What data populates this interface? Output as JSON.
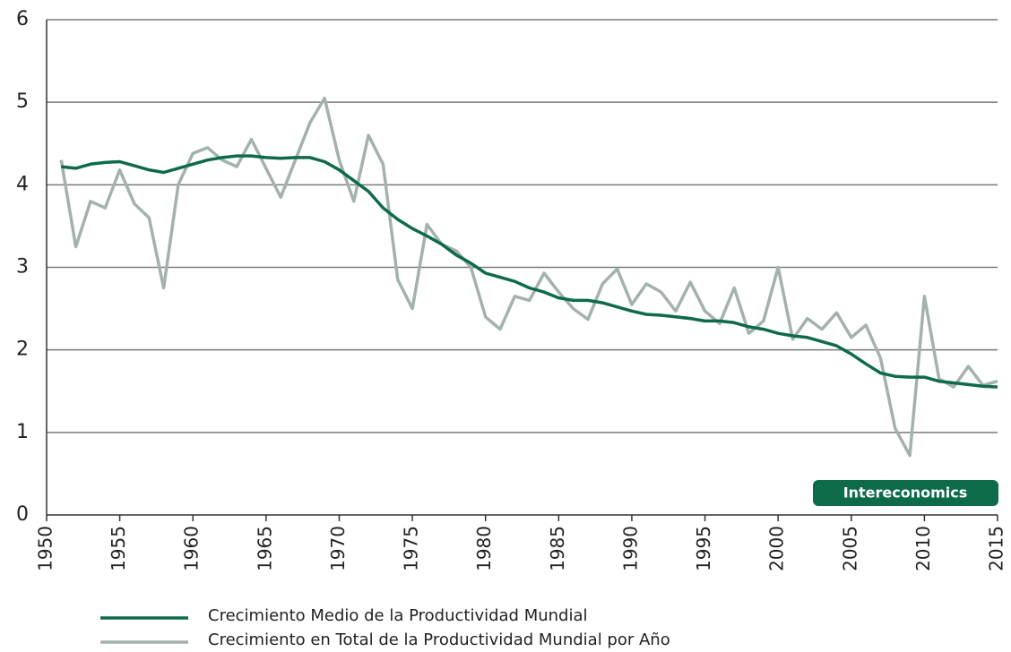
{
  "chart_data": {
    "type": "line",
    "annotation": "Intereconomics",
    "x": [
      1951,
      1952,
      1953,
      1954,
      1955,
      1956,
      1957,
      1958,
      1959,
      1960,
      1961,
      1962,
      1963,
      1964,
      1965,
      1966,
      1967,
      1968,
      1969,
      1970,
      1971,
      1972,
      1973,
      1974,
      1975,
      1976,
      1977,
      1978,
      1979,
      1980,
      1981,
      1982,
      1983,
      1984,
      1985,
      1986,
      1987,
      1988,
      1989,
      1990,
      1991,
      1992,
      1993,
      1994,
      1995,
      1996,
      1997,
      1998,
      1999,
      2000,
      2001,
      2002,
      2003,
      2004,
      2005,
      2006,
      2007,
      2008,
      2009,
      2010,
      2011,
      2012,
      2013,
      2014,
      2015
    ],
    "series": [
      {
        "name": "Crecimiento Medio de la Productividad Mundial",
        "color": "#0e6b4a",
        "values": [
          4.22,
          4.2,
          4.25,
          4.27,
          4.28,
          4.23,
          4.18,
          4.15,
          4.2,
          4.25,
          4.3,
          4.33,
          4.35,
          4.35,
          4.33,
          4.32,
          4.33,
          4.33,
          4.28,
          4.18,
          4.05,
          3.92,
          3.72,
          3.58,
          3.47,
          3.38,
          3.28,
          3.15,
          3.05,
          2.93,
          2.88,
          2.83,
          2.75,
          2.7,
          2.63,
          2.6,
          2.6,
          2.57,
          2.52,
          2.47,
          2.43,
          2.42,
          2.4,
          2.38,
          2.35,
          2.35,
          2.33,
          2.28,
          2.25,
          2.2,
          2.17,
          2.15,
          2.1,
          2.05,
          1.95,
          1.83,
          1.72,
          1.68,
          1.67,
          1.67,
          1.62,
          1.6,
          1.58,
          1.56,
          1.55
        ]
      },
      {
        "name": "Crecimiento en Total de la Productividad Mundial por Año",
        "color": "#a3b3ac",
        "values": [
          4.3,
          3.25,
          3.8,
          3.72,
          4.18,
          3.77,
          3.6,
          2.75,
          4.0,
          4.38,
          4.45,
          4.3,
          4.22,
          4.55,
          4.2,
          3.85,
          4.3,
          4.75,
          5.05,
          4.3,
          3.8,
          4.6,
          4.25,
          2.85,
          2.5,
          3.52,
          3.28,
          3.2,
          3.0,
          2.4,
          2.25,
          2.65,
          2.6,
          2.93,
          2.7,
          2.5,
          2.37,
          2.8,
          2.98,
          2.55,
          2.8,
          2.7,
          2.47,
          2.82,
          2.47,
          2.32,
          2.75,
          2.2,
          2.35,
          3.0,
          2.13,
          2.38,
          2.25,
          2.45,
          2.15,
          2.3,
          1.9,
          1.05,
          0.72,
          2.65,
          1.65,
          1.55,
          1.8,
          1.57,
          1.62
        ]
      }
    ],
    "xlim": [
      1950,
      2015
    ],
    "xticks": [
      1950,
      1955,
      1960,
      1965,
      1970,
      1975,
      1980,
      1985,
      1990,
      1995,
      2000,
      2005,
      2010,
      2015
    ],
    "ylim": [
      0,
      6
    ],
    "yticks": [
      0,
      1,
      2,
      3,
      4,
      5,
      6
    ],
    "grid": true
  }
}
